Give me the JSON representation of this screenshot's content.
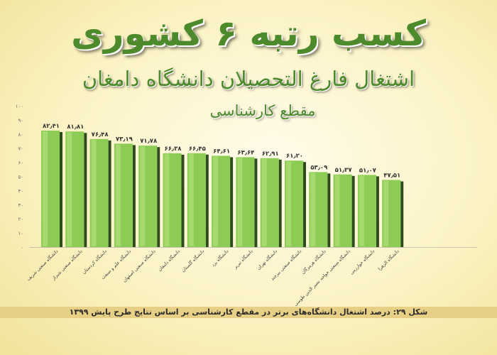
{
  "header": {
    "headline": "کسب رتبه ۶ کشوری",
    "subline1": "اشتغال فارغ التحصیلان دانشگاه دامغان",
    "subline2": "مقطع کارشناسی"
  },
  "caption": "شکل ۲۹: درصد اشتغال دانشگاه‌های برتر در مقطع کارشناسی بر اساس نتایج طرح پایش ۱۳۹۹",
  "colors": {
    "bar_fill": "#8ccc55",
    "bar_highlight": "#b8e37f",
    "bar_shadow": "#2f4a1c",
    "text": "#333333"
  },
  "chart_data": {
    "type": "bar",
    "title": "",
    "xlabel": "",
    "ylabel": "",
    "ylim": [
      0,
      100
    ],
    "yticks": [
      "۰",
      "۱۰",
      "۲۰",
      "۳۰",
      "۴۰",
      "۵۰",
      "۶۰",
      "۷۰",
      "۸۰",
      "۹۰",
      "۱۰۰"
    ],
    "grid": false,
    "categories": [
      "دانشگاه صنعتی شریف",
      "دانشگاه صنعتی شیراز",
      "دانشگاه کردستان",
      "دانشگاه علم و صنعت",
      "دانشگاه صنعتی اصفهان",
      "دانشگاه دامغان",
      "دانشگاه گلستان",
      "دانشگاه یزد",
      "دانشگاه تبریز",
      "دانشگاه تهران",
      "دانشگاه صنعتی بیرجند",
      "دانشگاه هرمزگان",
      "دانشگاه صنعتی خواجه نصیر الدین طوسی",
      "دانشگاه خوارزمی",
      "دانشگاه الزهرا"
    ],
    "values": [
      82.41,
      81.81,
      76.48,
      73.19,
      71.78,
      66.38,
      66.45,
      64.61,
      63.64,
      62.91,
      61.2,
      53.09,
      51.37,
      51.07,
      47.51
    ],
    "value_labels": [
      "۸۲٫۴۱",
      "۸۱٫۸۱",
      "۷۶٫۴۸",
      "۷۳٫۱۹",
      "۷۱٫۷۸",
      "۶۶٫۳۸",
      "۶۶٫۴۵",
      "۶۴٫۶۱",
      "۶۳٫۶۴",
      "۶۲٫۹۱",
      "۶۱٫۲۰",
      "۵۳٫۰۹",
      "۵۱٫۳۷",
      "۵۱٫۰۷",
      "۴۷٫۵۱"
    ]
  }
}
